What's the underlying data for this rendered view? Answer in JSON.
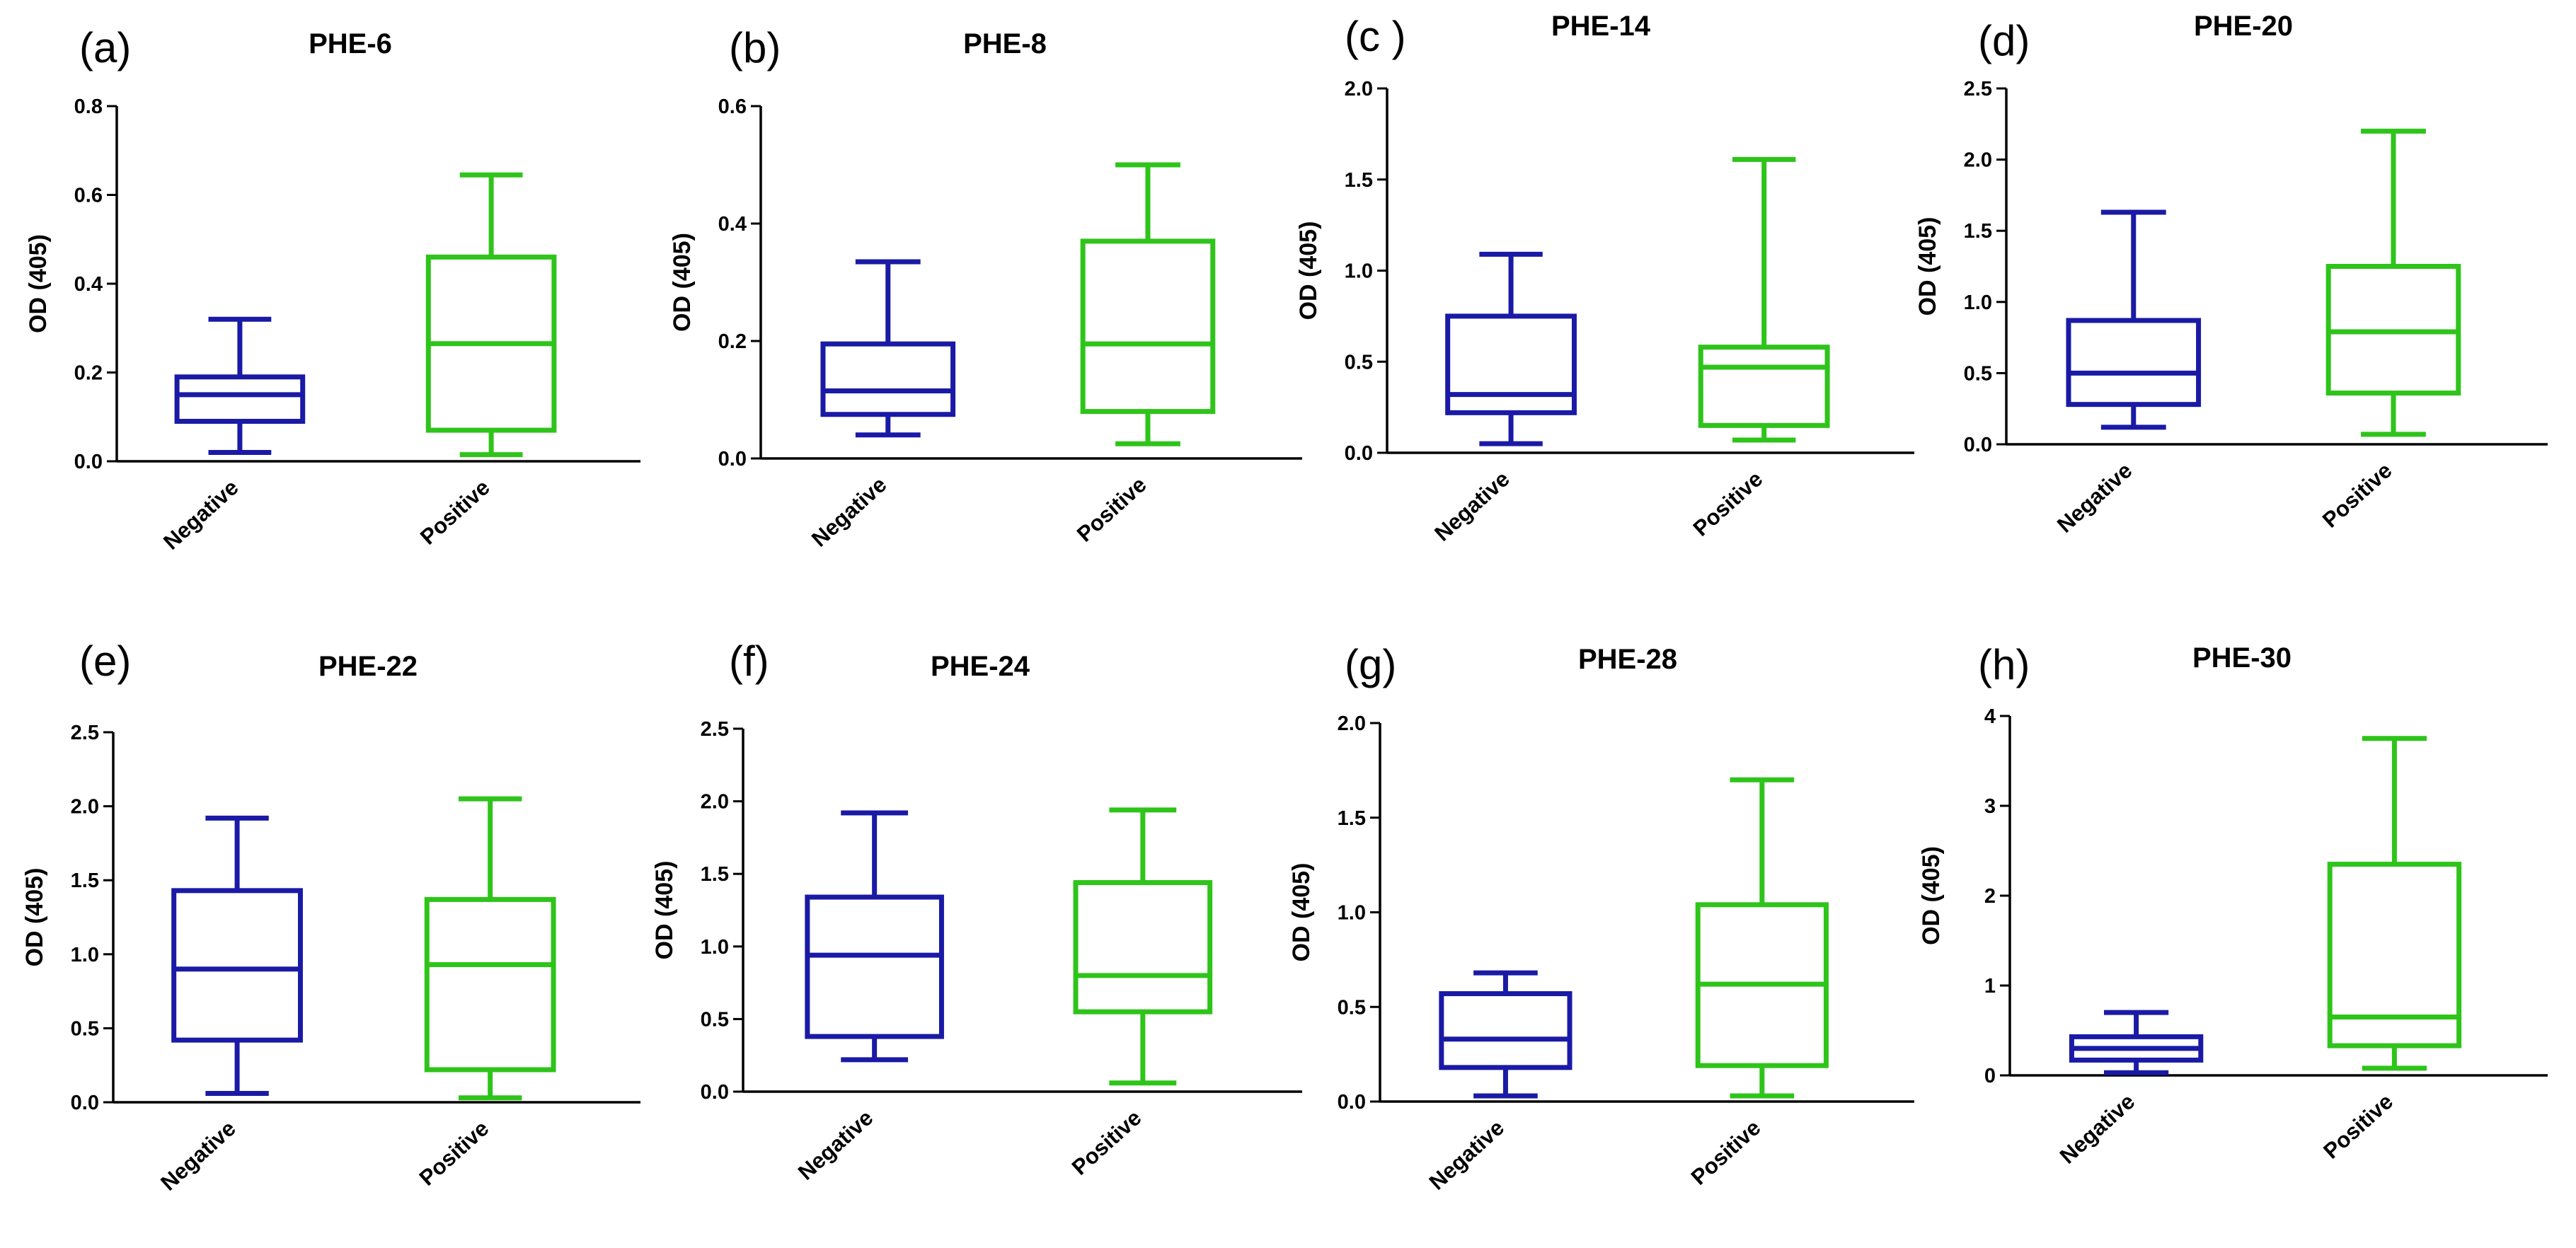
{
  "chart_data": [
    {
      "type": "box",
      "label": "(a)",
      "title": "PHE-6",
      "ylabel": "OD (405)",
      "ylim": [
        0,
        0.8
      ],
      "yticks": [
        "0.0",
        "0.2",
        "0.4",
        "0.6",
        "0.8"
      ],
      "categories": [
        "Negative",
        "Positive"
      ],
      "series": [
        {
          "name": "Negative",
          "color": "#1a1aa6",
          "min": 0.02,
          "q1": 0.09,
          "median": 0.15,
          "q3": 0.19,
          "max": 0.32
        },
        {
          "name": "Positive",
          "color": "#2ec41a",
          "min": 0.015,
          "q1": 0.07,
          "median": 0.265,
          "q3": 0.46,
          "max": 0.645
        }
      ]
    },
    {
      "type": "box",
      "label": "(b)",
      "title": "PHE-8",
      "ylabel": "OD (405)",
      "ylim": [
        0,
        0.6
      ],
      "yticks": [
        "0.0",
        "0.2",
        "0.4",
        "0.6"
      ],
      "categories": [
        "Negative",
        "Positive"
      ],
      "series": [
        {
          "name": "Negative",
          "color": "#1a1aa6",
          "min": 0.04,
          "q1": 0.075,
          "median": 0.115,
          "q3": 0.195,
          "max": 0.335
        },
        {
          "name": "Positive",
          "color": "#2ec41a",
          "min": 0.025,
          "q1": 0.08,
          "median": 0.195,
          "q3": 0.37,
          "max": 0.5
        }
      ]
    },
    {
      "type": "box",
      "label": "(c )",
      "title": "PHE-14",
      "ylabel": "OD (405)",
      "ylim": [
        0,
        2.0
      ],
      "yticks": [
        "0.0",
        "0.5",
        "1.0",
        "1.5",
        "2.0"
      ],
      "categories": [
        "Negative",
        "Positive"
      ],
      "series": [
        {
          "name": "Negative",
          "color": "#1a1aa6",
          "min": 0.05,
          "q1": 0.22,
          "median": 0.32,
          "q3": 0.75,
          "max": 1.09
        },
        {
          "name": "Positive",
          "color": "#2ec41a",
          "min": 0.07,
          "q1": 0.15,
          "median": 0.47,
          "q3": 0.58,
          "max": 1.61
        }
      ]
    },
    {
      "type": "box",
      "label": "(d)",
      "title": "PHE-20",
      "ylabel": "OD (405)",
      "ylim": [
        0,
        2.5
      ],
      "yticks": [
        "0.0",
        "0.5",
        "1.0",
        "1.5",
        "2.0",
        "2.5"
      ],
      "categories": [
        "Negative",
        "Positive"
      ],
      "series": [
        {
          "name": "Negative",
          "color": "#1a1aa6",
          "min": 0.12,
          "q1": 0.28,
          "median": 0.5,
          "q3": 0.87,
          "max": 1.63
        },
        {
          "name": "Positive",
          "color": "#2ec41a",
          "min": 0.07,
          "q1": 0.36,
          "median": 0.79,
          "q3": 1.25,
          "max": 2.2
        }
      ]
    },
    {
      "type": "box",
      "label": "(e)",
      "title": "PHE-22",
      "ylabel": "OD (405)",
      "ylim": [
        0,
        2.5
      ],
      "yticks": [
        "0.0",
        "0.5",
        "1.0",
        "1.5",
        "2.0",
        "2.5"
      ],
      "categories": [
        "Negative",
        "Positive"
      ],
      "series": [
        {
          "name": "Negative",
          "color": "#1a1aa6",
          "min": 0.06,
          "q1": 0.42,
          "median": 0.9,
          "q3": 1.43,
          "max": 1.92
        },
        {
          "name": "Positive",
          "color": "#2ec41a",
          "min": 0.03,
          "q1": 0.22,
          "median": 0.93,
          "q3": 1.37,
          "max": 2.05
        }
      ]
    },
    {
      "type": "box",
      "label": "(f)",
      "title": "PHE-24",
      "ylabel": "OD (405)",
      "ylim": [
        0,
        2.5
      ],
      "yticks": [
        "0.0",
        "0.5",
        "1.0",
        "1.5",
        "2.0",
        "2.5"
      ],
      "categories": [
        "Negative",
        "Positive"
      ],
      "series": [
        {
          "name": "Negative",
          "color": "#1a1aa6",
          "min": 0.22,
          "q1": 0.38,
          "median": 0.94,
          "q3": 1.34,
          "max": 1.92
        },
        {
          "name": "Positive",
          "color": "#2ec41a",
          "min": 0.06,
          "q1": 0.55,
          "median": 0.8,
          "q3": 1.44,
          "max": 1.94
        }
      ]
    },
    {
      "type": "box",
      "label": "(g)",
      "title": "PHE-28",
      "ylabel": "OD (405)",
      "ylim": [
        0,
        2.0
      ],
      "yticks": [
        "0.0",
        "0.5",
        "1.0",
        "1.5",
        "2.0"
      ],
      "categories": [
        "Negative",
        "Positive"
      ],
      "series": [
        {
          "name": "Negative",
          "color": "#1a1aa6",
          "min": 0.03,
          "q1": 0.18,
          "median": 0.33,
          "q3": 0.57,
          "max": 0.68
        },
        {
          "name": "Positive",
          "color": "#2ec41a",
          "min": 0.03,
          "q1": 0.19,
          "median": 0.62,
          "q3": 1.04,
          "max": 1.7
        }
      ]
    },
    {
      "type": "box",
      "label": "(h)",
      "title": "PHE-30",
      "ylabel": "OD (405)",
      "ylim": [
        0,
        4
      ],
      "yticks": [
        "0",
        "1",
        "2",
        "3",
        "4"
      ],
      "categories": [
        "Negative",
        "Positive"
      ],
      "series": [
        {
          "name": "Negative",
          "color": "#1a1aa6",
          "min": 0.03,
          "q1": 0.17,
          "median": 0.3,
          "q3": 0.43,
          "max": 0.7
        },
        {
          "name": "Positive",
          "color": "#2ec41a",
          "min": 0.08,
          "q1": 0.33,
          "median": 0.65,
          "q3": 2.35,
          "max": 3.75
        }
      ]
    }
  ]
}
